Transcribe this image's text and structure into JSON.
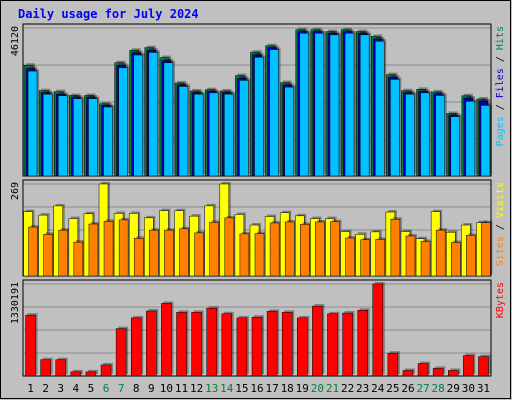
{
  "chart_data": {
    "type": "bar",
    "title": "Daily usage for July 2024",
    "days": [
      "1",
      "2",
      "3",
      "4",
      "5",
      "6",
      "7",
      "8",
      "9",
      "10",
      "11",
      "12",
      "13",
      "14",
      "15",
      "16",
      "17",
      "18",
      "19",
      "20",
      "21",
      "22",
      "23",
      "24",
      "25",
      "26",
      "27",
      "28",
      "29",
      "30",
      "31"
    ],
    "weekend_days": [
      "6",
      "7",
      "13",
      "14",
      "20",
      "21",
      "27",
      "28"
    ],
    "panels": [
      {
        "id": "hits",
        "max_label": "46120",
        "ymax": 46120,
        "series": [
          {
            "name": "Hits",
            "color": "#008040",
            "values": [
              34500,
              26600,
              26300,
              25100,
              25100,
              22500,
              35300,
              39200,
              40000,
              36900,
              29000,
              26500,
              26900,
              26500,
              31300,
              38600,
              40600,
              29100,
              45600,
              45600,
              45000,
              45600,
              45000,
              43500,
              31600,
              26600,
              27000,
              26200,
              19500,
              25000,
              24000
            ]
          },
          {
            "name": "Files",
            "color": "#0000c0",
            "values": [
              33500,
              26000,
              25500,
              24600,
              24600,
              22000,
              34500,
              38400,
              39200,
              36000,
              28400,
              26000,
              26400,
              26000,
              30500,
              37800,
              40000,
              28400,
              45000,
              45000,
              44500,
              45000,
              44500,
              42700,
              30800,
              26000,
              26400,
              25600,
              19000,
              24300,
              23400
            ]
          },
          {
            "name": "Pages",
            "color": "#00c0ff",
            "values": [
              32700,
              25500,
              25000,
              24100,
              24100,
              21500,
              33700,
              37700,
              38500,
              35300,
              27900,
              25500,
              25900,
              25500,
              29800,
              37000,
              39400,
              27700,
              44500,
              44500,
              44000,
              44500,
              44000,
              42000,
              30100,
              25500,
              25900,
              25100,
              18500,
              23300,
              22000
            ]
          }
        ]
      },
      {
        "id": "visits",
        "max_label": "269",
        "ymax": 269,
        "series": [
          {
            "name": "Visits",
            "color": "#ffff00",
            "values": [
              188,
              178,
              205,
              168,
              182,
              269,
              183,
              183,
              170,
              191,
              191,
              175,
              205,
              269,
              180,
              149,
              174,
              185,
              176,
              168,
              168,
              130,
              122,
              129,
              187,
              130,
              109,
              188,
              128,
              149,
              156
            ]
          },
          {
            "name": "Sites",
            "color": "#ff8000",
            "values": [
              143,
              122,
              134,
              99,
              152,
              160,
              164,
              110,
              134,
              134,
              138,
              126,
              157,
              170,
              123,
              124,
              155,
              158,
              151,
              158,
              159,
              111,
              106,
              107,
              166,
              117,
              101,
              134,
              98,
              119,
              156
            ]
          }
        ]
      },
      {
        "id": "kbytes",
        "max_label": "1330191",
        "ymax": 1330191,
        "series": [
          {
            "name": "KBytes",
            "color": "#ff0000",
            "values": [
              880000,
              235000,
              235000,
              60000,
              60000,
              160000,
              685000,
              840000,
              940000,
              1050000,
              920000,
              920000,
              980000,
              900000,
              840000,
              850000,
              935000,
              920000,
              840000,
              1010000,
              900000,
              910000,
              950000,
              1330191,
              330000,
              80000,
              180000,
              110000,
              80000,
              295000,
              280000
            ]
          }
        ]
      }
    ]
  }
}
